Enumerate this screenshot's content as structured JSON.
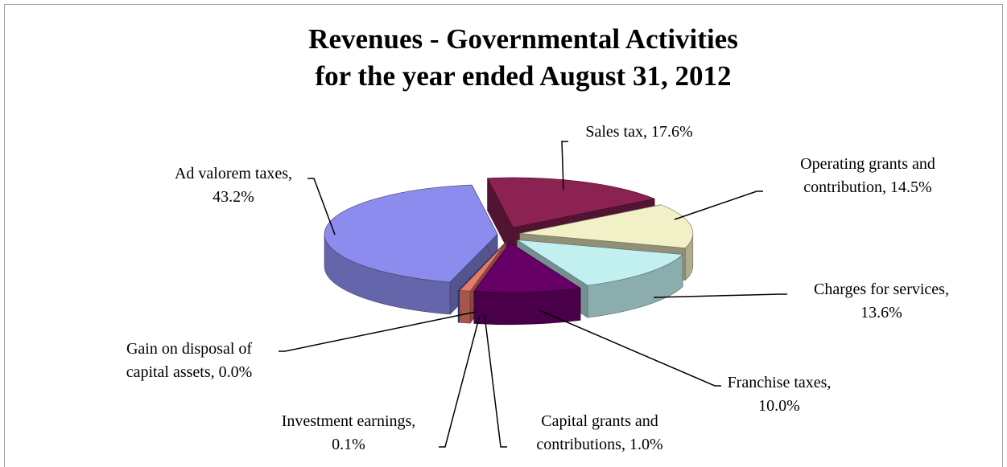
{
  "chart_data": {
    "type": "pie3d",
    "title": [
      "Revenues - Governmental Activities",
      "for the year ended August 31, 2012"
    ],
    "values": [
      17.6,
      14.5,
      13.6,
      10.0,
      1.0,
      0.1,
      0.0,
      43.2
    ],
    "labels": [
      [
        "Sales tax, 17.6%"
      ],
      [
        "Operating grants and",
        "contribution, 14.5%"
      ],
      [
        "Charges for services,",
        "13.6%"
      ],
      [
        "Franchise taxes,",
        "10.0%"
      ],
      [
        "Capital grants and",
        "contributions, 1.0%"
      ],
      [
        "Investment earnings,",
        "0.1%"
      ],
      [
        "Gain on disposal of",
        "capital assets, 0.0%"
      ],
      [
        "Ad valorem taxes,",
        "43.2%"
      ]
    ],
    "colors": [
      "#8b2252",
      "#f2f0c6",
      "#c2f0f0",
      "#660066",
      "#e87868",
      "#3a5fcd",
      "#8888ee",
      "#8c8cee"
    ]
  }
}
